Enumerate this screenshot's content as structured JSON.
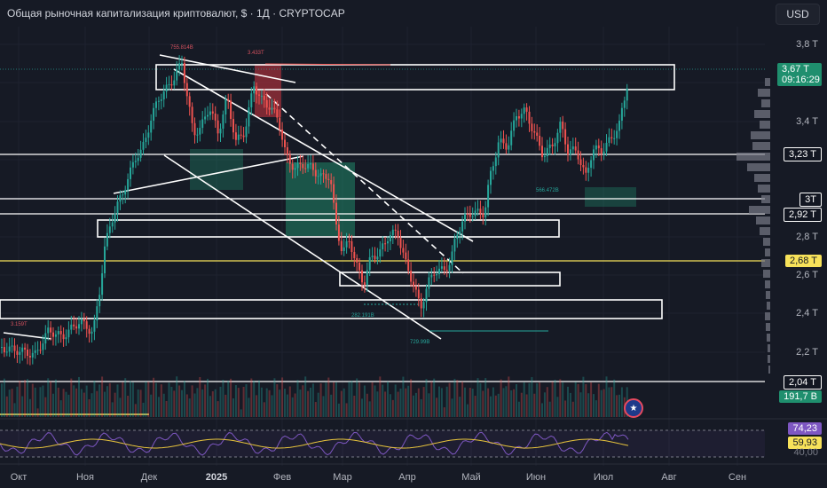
{
  "header": {
    "title": "Общая рыночная капитализация криптовалют, $ · 1Д · CRYPTOCAP",
    "currency_button": "USD"
  },
  "colors": {
    "background": "#161a25",
    "up": "#26a69a",
    "down": "#ef5350",
    "zone_red": "#b2313c",
    "zone_green": "#1f8f6e",
    "yellow_line": "#f7e25a",
    "rsi_line": "#7e57c2",
    "rsi_ma": "#e8c43c",
    "box_outline": "#ffffff"
  },
  "price_axis": {
    "ticks": [
      "3,8 T",
      "3,4 T",
      "2,8 T",
      "2,6 T",
      "2,4 T",
      "2,2 T"
    ]
  },
  "price_badges": {
    "last_price": "3,67 T",
    "countdown": "09:16:29",
    "level_323": "3,23 T",
    "level_3": "3T",
    "level_292": "2,92 T",
    "level_268": "2,68 T",
    "level_204": "2,04 T",
    "volume": "191,7 B"
  },
  "rsi": {
    "value": "74,23",
    "ma_value": "59,93",
    "level_40": "40,00"
  },
  "time_axis": {
    "labels": [
      "Окт",
      "Ноя",
      "Дек",
      "2025",
      "Фев",
      "Мар",
      "Апр",
      "Май",
      "Июн",
      "Июл",
      "Авг",
      "Сен"
    ]
  },
  "annotations": {
    "high": "755.814B",
    "high2": "3.433T",
    "low_mar": "282.191B",
    "low_apr": "729.99B",
    "low_jun": "566.472B",
    "left_level": "3.159T"
  },
  "chart_data": {
    "type": "candlestick",
    "symbol": "CRYPTOCAP",
    "interval": "1Д",
    "currency": "USD",
    "last_price": "3,67 T",
    "marked_levels": [
      "3,23 T",
      "3T",
      "2,92 T",
      "2,68 T",
      "2,04 T"
    ],
    "volume_last": "191,7 B",
    "rsi_last": "74,23",
    "rsi_ma_last": "59,93"
  }
}
